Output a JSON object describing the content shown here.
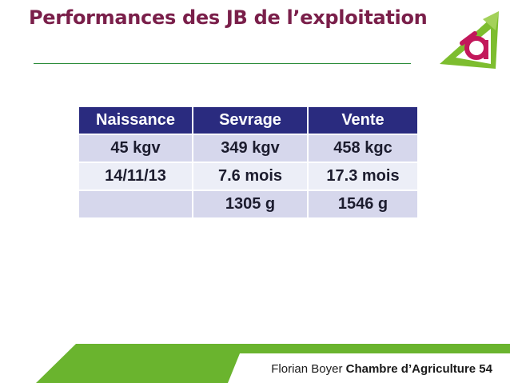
{
  "slide": {
    "title": "Performances des JB de l’exploitation"
  },
  "table": {
    "headers": [
      "Naissance",
      "Sevrage",
      "Vente"
    ],
    "rows": [
      [
        "45 kgv",
        "349 kgv",
        "458 kgc"
      ],
      [
        "14/11/13",
        "7.6 mois",
        "17.3 mois"
      ],
      [
        "",
        "1305 g",
        "1546 g"
      ]
    ]
  },
  "footer": {
    "author": "Florian Boyer",
    "organization": "Chambre d’Agriculture 54"
  },
  "colors": {
    "title": "#7a1f4a",
    "accent_green": "#6ab42e",
    "header_bg": "#2a2b7f",
    "row_odd_bg": "#d6d7ec",
    "row_even_bg": "#eceef7"
  },
  "icons": {
    "logo": "chambre-agriculture-logo"
  }
}
